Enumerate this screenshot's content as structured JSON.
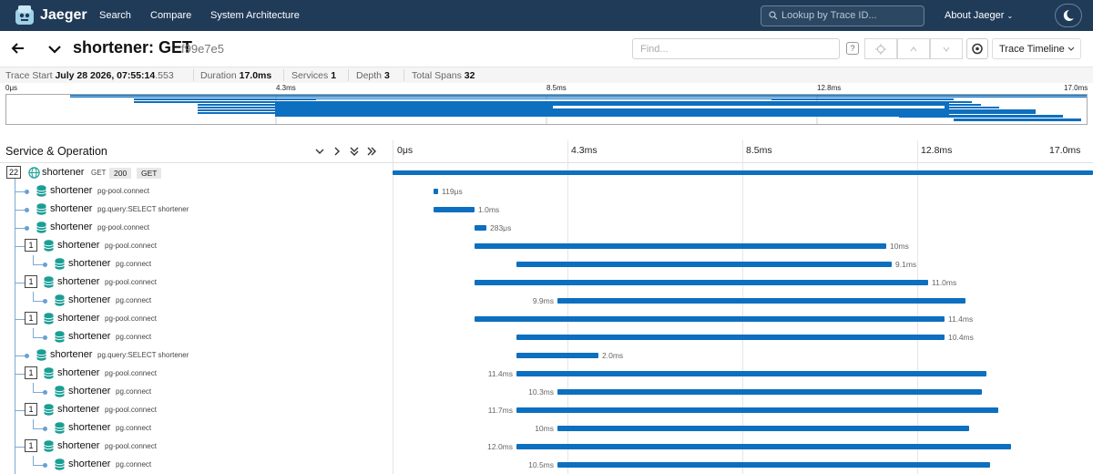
{
  "nav": {
    "brand": "Jaeger",
    "links": [
      "Search",
      "Compare",
      "System Architecture"
    ],
    "search_placeholder": "Lookup by Trace ID...",
    "about": "About Jaeger"
  },
  "trace": {
    "service": "shortener: GET",
    "id": "f99e7e5",
    "find_placeholder": "Find...",
    "view": "Trace Timeline"
  },
  "stats": {
    "trace_start_label": "Trace Start",
    "trace_start": "July 28 2026, 07:55:14",
    "trace_start_ms": ".553",
    "duration_label": "Duration",
    "duration": "17.0ms",
    "services_label": "Services",
    "services": "1",
    "depth_label": "Depth",
    "depth": "3",
    "total_spans_label": "Total Spans",
    "total_spans": "32"
  },
  "minimap_ticks": [
    "0μs",
    "4.3ms",
    "8.5ms",
    "12.8ms",
    "17.0ms"
  ],
  "timeline": {
    "column_title": "Service & Operation",
    "ticks": [
      "0μs",
      "4.3ms",
      "8.5ms",
      "12.8ms",
      "17.0ms"
    ],
    "total_ms": 17.0
  },
  "colors": {
    "nav": "#1f3b58",
    "bar": "#0d6fbf",
    "db": "#1b9e96"
  },
  "rows": [
    {
      "depth": 0,
      "count": "22",
      "service": "shortener",
      "op": "GET",
      "tags": [
        "200",
        "GET"
      ],
      "start_ms": 0,
      "duration_ms": 17.0,
      "label": "",
      "root": true
    },
    {
      "depth": 1,
      "service": "shortener",
      "op": "pg-pool.connect",
      "start_ms": 1.0,
      "duration_ms": 0.119,
      "label": "119μs",
      "label_side": "right"
    },
    {
      "depth": 1,
      "service": "shortener",
      "op": "pg.query:SELECT shortener",
      "start_ms": 1.0,
      "duration_ms": 1.0,
      "label": "1.0ms",
      "label_side": "right"
    },
    {
      "depth": 1,
      "service": "shortener",
      "op": "pg-pool.connect",
      "start_ms": 2.0,
      "duration_ms": 0.283,
      "label": "283μs",
      "label_side": "right"
    },
    {
      "depth": 1,
      "count": "1",
      "service": "shortener",
      "op": "pg-pool.connect",
      "start_ms": 2.0,
      "duration_ms": 10.0,
      "label": "10ms",
      "label_side": "right"
    },
    {
      "depth": 2,
      "service": "shortener",
      "op": "pg.connect",
      "start_ms": 3.0,
      "duration_ms": 9.1,
      "label": "9.1ms",
      "label_side": "right"
    },
    {
      "depth": 1,
      "count": "1",
      "service": "shortener",
      "op": "pg-pool.connect",
      "start_ms": 2.0,
      "duration_ms": 11.0,
      "label": "11.0ms",
      "label_side": "right"
    },
    {
      "depth": 2,
      "service": "shortener",
      "op": "pg.connect",
      "start_ms": 4.0,
      "duration_ms": 9.9,
      "label": "9.9ms",
      "label_side": "left"
    },
    {
      "depth": 1,
      "count": "1",
      "service": "shortener",
      "op": "pg-pool.connect",
      "start_ms": 2.0,
      "duration_ms": 11.4,
      "label": "11.4ms",
      "label_side": "right"
    },
    {
      "depth": 2,
      "service": "shortener",
      "op": "pg.connect",
      "start_ms": 3.0,
      "duration_ms": 10.4,
      "label": "10.4ms",
      "label_side": "right"
    },
    {
      "depth": 1,
      "service": "shortener",
      "op": "pg.query:SELECT shortener",
      "start_ms": 3.0,
      "duration_ms": 2.0,
      "label": "2.0ms",
      "label_side": "right"
    },
    {
      "depth": 1,
      "count": "1",
      "service": "shortener",
      "op": "pg-pool.connect",
      "start_ms": 3.0,
      "duration_ms": 11.4,
      "label": "11.4ms",
      "label_side": "left"
    },
    {
      "depth": 2,
      "service": "shortener",
      "op": "pg.connect",
      "start_ms": 4.0,
      "duration_ms": 10.3,
      "label": "10.3ms",
      "label_side": "left"
    },
    {
      "depth": 1,
      "count": "1",
      "service": "shortener",
      "op": "pg-pool.connect",
      "start_ms": 3.0,
      "duration_ms": 11.7,
      "label": "11.7ms",
      "label_side": "left"
    },
    {
      "depth": 2,
      "service": "shortener",
      "op": "pg.connect",
      "start_ms": 4.0,
      "duration_ms": 10.0,
      "label": "10ms",
      "label_side": "left"
    },
    {
      "depth": 1,
      "count": "1",
      "service": "shortener",
      "op": "pg-pool.connect",
      "start_ms": 3.0,
      "duration_ms": 12.0,
      "label": "12.0ms",
      "label_side": "left"
    },
    {
      "depth": 2,
      "service": "shortener",
      "op": "pg.connect",
      "start_ms": 4.0,
      "duration_ms": 10.5,
      "label": "10.5ms",
      "label_side": "left"
    }
  ]
}
